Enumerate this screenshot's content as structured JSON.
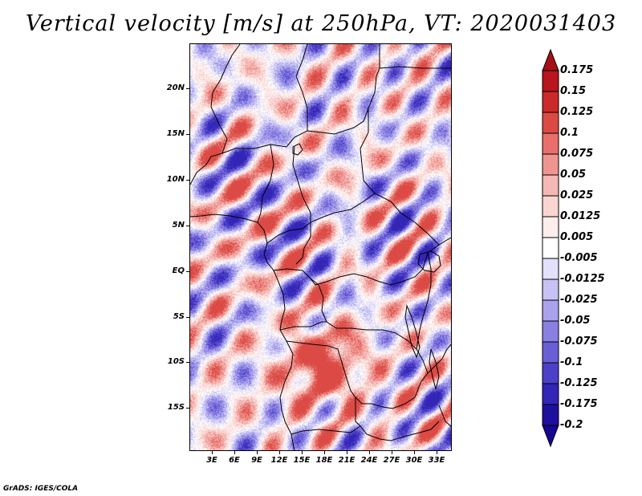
{
  "title": "Vertical velocity [m/s] at 250hPa, VT: 2020031403",
  "footer": "GrADS: IGES/COLA",
  "map": {
    "lat_labels": [
      "20N",
      "15N",
      "10N",
      "5N",
      "EQ",
      "5S",
      "10S",
      "15S"
    ],
    "lat_values": [
      20,
      15,
      10,
      5,
      0,
      -5,
      -10,
      -15
    ],
    "lon_labels": [
      "3E",
      "6E",
      "9E",
      "12E",
      "15E",
      "18E",
      "21E",
      "24E",
      "27E",
      "30E",
      "33E"
    ],
    "lon_values": [
      3,
      6,
      9,
      12,
      15,
      18,
      21,
      24,
      27,
      30,
      33
    ],
    "lat_range": [
      -20,
      25
    ],
    "lon_range": [
      0,
      35
    ]
  },
  "colorbar": {
    "labels": [
      "0.175",
      "0.15",
      "0.125",
      "0.1",
      "0.075",
      "0.05",
      "0.025",
      "0.0125",
      "0.005",
      "-0.005",
      "-0.0125",
      "-0.025",
      "-0.05",
      "-0.075",
      "-0.1",
      "-0.125",
      "-0.175",
      "-0.2"
    ],
    "colors": [
      "#a50f15",
      "#b8151c",
      "#cb2a2a",
      "#db4a44",
      "#e8706a",
      "#ef9590",
      "#f5b8b4",
      "#fad6d3",
      "#fdeeec",
      "#ffffff",
      "#e2e0fa",
      "#c7c2f4",
      "#aaa2ec",
      "#8a80e2",
      "#6a5fd6",
      "#4d40c8",
      "#3325b6",
      "#1f0f9e",
      "#160890"
    ]
  }
}
